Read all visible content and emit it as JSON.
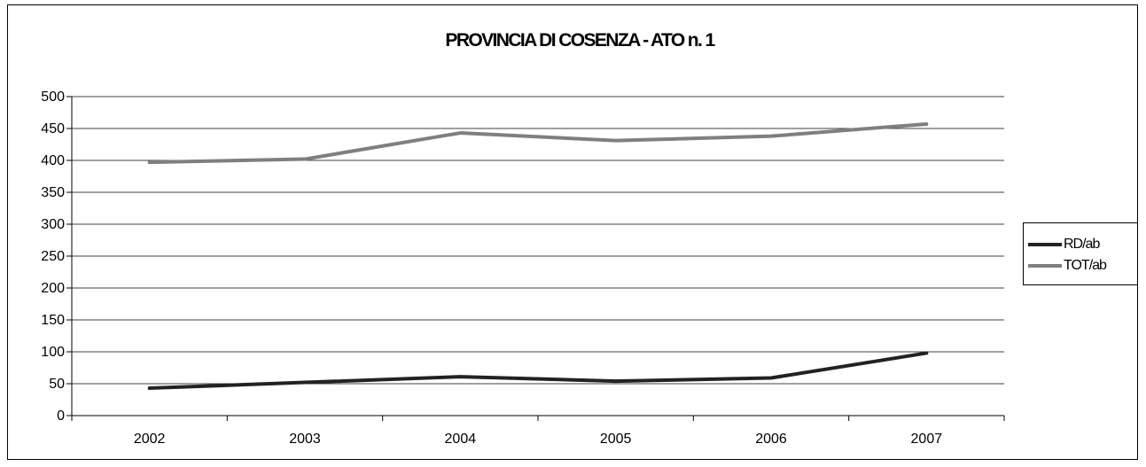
{
  "chart_data": {
    "type": "line",
    "title": "PROVINCIA DI COSENZA - ATO n. 1",
    "xlabel": "",
    "ylabel": "",
    "categories": [
      "2002",
      "2003",
      "2004",
      "2005",
      "2006",
      "2007"
    ],
    "ylim": [
      0,
      500
    ],
    "yticks": [
      0,
      50,
      100,
      150,
      200,
      250,
      300,
      350,
      400,
      450,
      500
    ],
    "grid": true,
    "legend_position": "right",
    "series": [
      {
        "name": "RD/ab",
        "values": [
          43,
          52,
          61,
          54,
          59,
          98
        ],
        "color": "#222222"
      },
      {
        "name": "TOT/ab",
        "values": [
          397,
          402,
          443,
          431,
          438,
          457
        ],
        "color": "#7f7f7f"
      }
    ]
  }
}
